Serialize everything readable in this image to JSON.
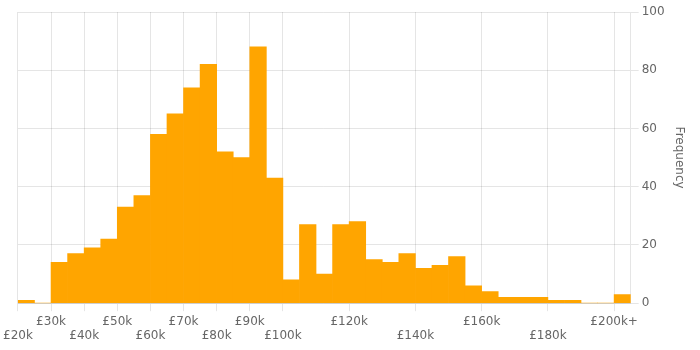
{
  "chart_data": {
    "type": "histogram",
    "bins": [
      20000,
      25000,
      30000,
      35000,
      40000,
      45000,
      50000,
      55000,
      60000,
      65000,
      70000,
      75000,
      80000,
      85000,
      90000,
      95000,
      100000,
      105000,
      110000,
      115000,
      120000,
      125000,
      130000,
      135000,
      140000,
      145000,
      150000,
      155000,
      160000,
      165000,
      170000,
      175000,
      180000,
      185000,
      190000,
      195000,
      200000,
      205000
    ],
    "values": [
      1,
      0,
      14,
      17,
      19,
      22,
      33,
      37,
      58,
      65,
      74,
      82,
      52,
      50,
      88,
      43,
      8,
      27,
      10,
      27,
      28,
      15,
      14,
      17,
      12,
      13,
      16,
      6,
      4,
      2,
      2,
      2,
      1,
      1,
      0,
      0,
      3
    ],
    "color": "#FFA500",
    "xlim": [
      20000,
      205000
    ],
    "xticks": [
      {
        "value": 20000,
        "label": "£20k"
      },
      {
        "value": 30000,
        "label": "£30k"
      },
      {
        "value": 40000,
        "label": "£40k"
      },
      {
        "value": 50000,
        "label": "£50k"
      },
      {
        "value": 60000,
        "label": "£60k"
      },
      {
        "value": 70000,
        "label": "£70k"
      },
      {
        "value": 80000,
        "label": "£80k"
      },
      {
        "value": 90000,
        "label": "£90k"
      },
      {
        "value": 100000,
        "label": "£100k"
      },
      {
        "value": 120000,
        "label": "£120k"
      },
      {
        "value": 140000,
        "label": "£140k"
      },
      {
        "value": 160000,
        "label": "£160k"
      },
      {
        "value": 180000,
        "label": "£180k"
      },
      {
        "value": 200000,
        "label": "£200k+"
      }
    ],
    "ylim": [
      0,
      100
    ],
    "yticks": [
      0,
      20,
      40,
      60,
      80,
      100
    ],
    "ylabel": "Frequency",
    "grid": true
  }
}
